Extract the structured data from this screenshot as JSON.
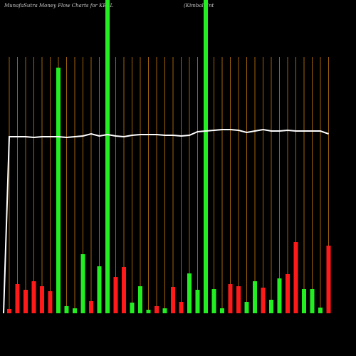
{
  "chart_data": {
    "type": "bar",
    "title": "MunafaSutra  Money Flow  Charts for KBAL",
    "subtitle": "(Kimball Int",
    "ylim": [
      0,
      440
    ],
    "values": [
      6,
      41,
      33,
      45,
      38,
      31,
      345,
      10,
      7,
      83,
      17,
      66,
      440,
      51,
      65,
      15,
      38,
      5,
      10,
      7,
      37,
      16,
      56,
      33,
      440,
      34,
      7,
      41,
      38,
      16,
      45,
      36,
      19,
      49,
      55,
      100,
      34,
      34,
      8,
      95
    ],
    "colors": [
      "#ff1a1a",
      "#ff1a1a",
      "#ff1a1a",
      "#ff1a1a",
      "#ff1a1a",
      "#ff1a1a",
      "#22ee22",
      "#22ee22",
      "#22ee22",
      "#22ee22",
      "#ff1a1a",
      "#22ee22",
      "#22ee22",
      "#ff1a1a",
      "#ff1a1a",
      "#22ee22",
      "#22ee22",
      "#22ee22",
      "#ff1a1a",
      "#22ee22",
      "#ff1a1a",
      "#ff1a1a",
      "#22ee22",
      "#22ee22",
      "#22ee22",
      "#22ee22",
      "#22ee22",
      "#ff1a1a",
      "#ff1a1a",
      "#22ee22",
      "#22ee22",
      "#ff1a1a",
      "#22ee22",
      "#22ee22",
      "#ff1a1a",
      "#ff1a1a",
      "#22ee22",
      "#22ee22",
      "#22ee22",
      "#ff1a1a"
    ],
    "line": {
      "color": "#ffffff",
      "values": [
        248,
        248,
        248,
        247,
        248,
        248,
        248,
        247,
        248,
        249,
        252,
        249,
        251,
        249,
        248,
        250,
        251,
        251,
        251,
        250,
        250,
        249,
        250,
        255,
        256,
        257,
        258,
        258,
        257,
        254,
        256,
        258,
        256,
        256,
        257,
        256,
        256,
        256,
        256,
        252
      ]
    },
    "grid_color": "#a0620a"
  }
}
